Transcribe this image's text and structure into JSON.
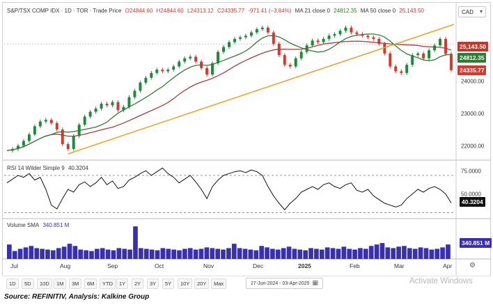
{
  "header": {
    "symbol": "S&P/TSX COMP IDX · 1D · TOR · Trade Price",
    "open": "O24844.60",
    "high": "H24844.60",
    "low": "L24313.12",
    "close": "C24335.77",
    "change": "-971.41 (−3.84%)",
    "ma21_label": "MA 21 close 0",
    "ma21_value": "24812.35",
    "ma50_label": "MA 50 close 0",
    "ma50_value": "25,143.50"
  },
  "currency": "CAD",
  "rsi": {
    "label": "RSI 14 Wilder Simple 9",
    "value": "40.3204"
  },
  "volume": {
    "label": "Volume SMA",
    "value": "340.851 M"
  },
  "source_note": "Source: REFINITIV, Analysis: Kalkine Group",
  "timeframes": [
    "1D",
    "5D",
    "10D",
    "1M",
    "3M",
    "6M",
    "YTD",
    "1Y",
    "2Y",
    "3Y",
    "5Y",
    "10Y",
    "20Y",
    "Max"
  ],
  "date_range": "27-Jun-2024  -  03-Apr-2025",
  "watermark": "Activate Windows",
  "icons": {
    "calendar": "calendar-icon",
    "settings": "gear-icon",
    "dropdown": "chevron-down-icon"
  },
  "colors": {
    "up": "#1e8a3c",
    "down": "#d23b2f",
    "ma21": "#2e7d32",
    "ma50": "#b03a3a",
    "trendline": "#f0a020",
    "rsi_line": "#111111",
    "volume": "#3a2fb0",
    "tag_ma50": "#c0392b",
    "tag_ma21": "#2e7d32",
    "tag_close": "#d63a2f"
  },
  "chart_data": [
    {
      "type": "candlestick",
      "title": "S&P/TSX COMP IDX",
      "x_labels": [
        "Jul",
        "Aug",
        "Sep",
        "Oct",
        "Nov",
        "Dec",
        "2025",
        "Feb",
        "Mar",
        "Apr"
      ],
      "y_ticks": [
        "22000.00",
        "23000.00",
        "24000.00"
      ],
      "ylim": [
        21600,
        25900
      ],
      "x_range": [
        "2024-06-27",
        "2025-04-03"
      ],
      "close_series": [
        21850,
        21900,
        22000,
        22150,
        22350,
        22600,
        22750,
        22800,
        22700,
        22500,
        22050,
        21900,
        22300,
        22650,
        22900,
        23050,
        23150,
        23300,
        23250,
        23350,
        23100,
        23200,
        23500,
        23700,
        23950,
        24100,
        24250,
        24350,
        24300,
        24350,
        24450,
        24600,
        24700,
        24750,
        24600,
        24400,
        24200,
        24550,
        24900,
        25050,
        25200,
        25300,
        25350,
        25400,
        25500,
        25600,
        25650,
        25500,
        25150,
        24800,
        24500,
        24450,
        24700,
        24900,
        25100,
        25250,
        25200,
        25300,
        25400,
        25450,
        25550,
        25650,
        25500,
        25450,
        25400,
        25350,
        25300,
        25150,
        24850,
        24450,
        24300,
        24250,
        24500,
        24800,
        24850,
        24700,
        24950,
        25100,
        25300,
        24840,
        24336
      ],
      "lines": [
        {
          "name": "MA 21",
          "value_at_end": 24812.35
        },
        {
          "name": "MA 50",
          "value_at_end": 25143.5
        },
        {
          "name": "Trendline",
          "from": [
            "2024-08-05",
            21750
          ],
          "to": [
            "2025-04-03",
            25750
          ]
        }
      ],
      "price_tags": [
        "25,143.50",
        "24812.35",
        "24335.77"
      ]
    },
    {
      "type": "line",
      "title": "RSI 14 Wilder Simple 9",
      "y_ticks": [
        "75.0000",
        "50.0000"
      ],
      "ylim": [
        25,
        85
      ],
      "reference_lines": [
        70,
        30
      ],
      "values": [
        62,
        66,
        70,
        68,
        72,
        65,
        68,
        55,
        38,
        34,
        45,
        55,
        52,
        60,
        63,
        58,
        62,
        68,
        60,
        64,
        56,
        58,
        65,
        68,
        72,
        75,
        70,
        74,
        78,
        72,
        68,
        62,
        66,
        70,
        63,
        55,
        45,
        58,
        65,
        70,
        72,
        74,
        75,
        73,
        76,
        74,
        70,
        58,
        48,
        40,
        33,
        40,
        45,
        52,
        55,
        58,
        55,
        60,
        62,
        58,
        56,
        60,
        62,
        54,
        52,
        55,
        48,
        44,
        40,
        38,
        36,
        38,
        45,
        50,
        55,
        52,
        56,
        58,
        55,
        50,
        40.32
      ],
      "last_value": "40.3204"
    },
    {
      "type": "bar",
      "title": "Volume SMA",
      "last_value": "340.851 M",
      "values": [
        40,
        22,
        28,
        32,
        36,
        30,
        28,
        26,
        24,
        30,
        34,
        42,
        36,
        26,
        24,
        22,
        28,
        30,
        26,
        24,
        30,
        28,
        26,
        90,
        30,
        28,
        26,
        24,
        30,
        28,
        26,
        24,
        28,
        30,
        26,
        28,
        32,
        30,
        28,
        26,
        30,
        42,
        30,
        28,
        26,
        24,
        36,
        32,
        28,
        26,
        30,
        34,
        28,
        26,
        24,
        30,
        28,
        26,
        32,
        30,
        28,
        34,
        28,
        26,
        30,
        28,
        36,
        40,
        44,
        32,
        30,
        34,
        36,
        30,
        28,
        32,
        30,
        26,
        28,
        32,
        40
      ]
    }
  ]
}
